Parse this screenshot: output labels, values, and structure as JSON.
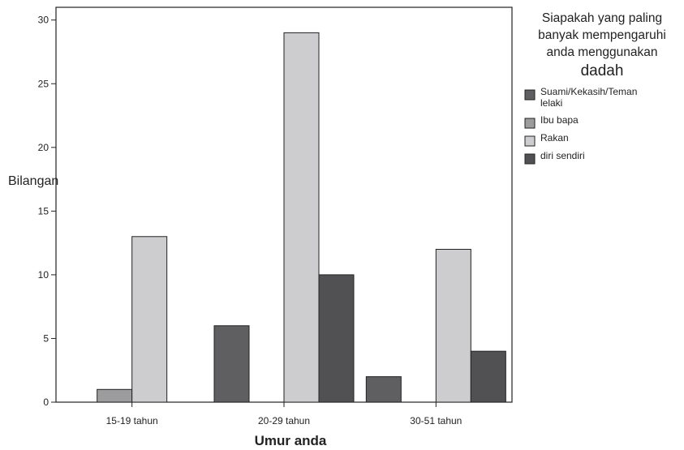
{
  "chart_data": {
    "type": "bar",
    "title": "",
    "xlabel": "Umur anda",
    "ylabel": "Bilangan",
    "ylim": [
      0,
      31
    ],
    "yticks": [
      0,
      5,
      10,
      15,
      20,
      25,
      30
    ],
    "categories": [
      "15-19 tahun",
      "20-29 tahun",
      "30-51 tahun"
    ],
    "legend": {
      "title_lines": [
        "Siapakah yang paling",
        "banyak mempengaruhi",
        "anda menggunakan",
        "dadah"
      ],
      "placement": "right"
    },
    "series": [
      {
        "name": "Suami/Kekasih/Teman lelaki",
        "name_lines": [
          "Suami/Kekasih/Teman",
          "lelaki"
        ],
        "color": "#5f5f61",
        "values": [
          0,
          6,
          2
        ]
      },
      {
        "name": "Ibu bapa",
        "name_lines": [
          "Ibu bapa"
        ],
        "color": "#9c9c9e",
        "values": [
          1,
          0,
          0
        ]
      },
      {
        "name": "Rakan",
        "name_lines": [
          "Rakan"
        ],
        "color": "#cdcdcf",
        "values": [
          13,
          29,
          12
        ]
      },
      {
        "name": "diri sendiri",
        "name_lines": [
          "diri sendiri"
        ],
        "color": "#515153",
        "values": [
          0,
          10,
          4
        ]
      }
    ],
    "grid": false
  }
}
